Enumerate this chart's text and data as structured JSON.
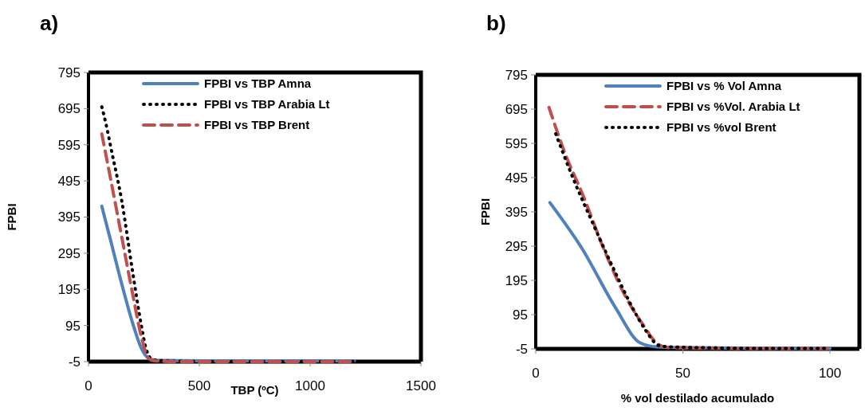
{
  "chart_data": [
    {
      "type": "line",
      "title": "a)",
      "xlabel": "TBP (ºC)",
      "ylabel": "FPBI",
      "xlim": [
        0,
        1500
      ],
      "xticks": [
        0,
        500,
        1000,
        1500
      ],
      "ylim": [
        -5,
        795
      ],
      "yticks": [
        -5,
        95,
        195,
        295,
        395,
        495,
        595,
        695,
        795
      ],
      "grid": false,
      "legend": "top",
      "marker": "none",
      "series": [
        {
          "name": "FPBI vs TBP Amna",
          "color": "#4f81bd",
          "line_style": "solid",
          "x": [
            60,
            100,
            150,
            200,
            240,
            270,
            300,
            400,
            600,
            800,
            1000,
            1200
          ],
          "values": [
            425,
            330,
            210,
            100,
            30,
            5,
            -1,
            -2,
            -3,
            -3,
            -3,
            -3
          ]
        },
        {
          "name": "FPBI vs TBP Arabia Lt",
          "color": "#000000",
          "line_style": "dotted",
          "x": [
            60,
            80,
            100,
            150,
            200,
            240,
            260,
            290,
            400,
            600,
            800,
            1000,
            1200
          ],
          "values": [
            700,
            650,
            590,
            440,
            240,
            90,
            30,
            0,
            -4,
            -5,
            -5,
            -5,
            -5
          ]
        },
        {
          "name": "FPBI vs TBP Brent",
          "color": "#c0504d",
          "line_style": "dashed",
          "x": [
            60,
            100,
            150,
            200,
            240,
            270,
            300,
            400,
            600,
            800,
            1000,
            1200
          ],
          "values": [
            625,
            500,
            340,
            180,
            60,
            5,
            -3,
            -5,
            -5,
            -5,
            -5,
            -5
          ]
        }
      ]
    },
    {
      "type": "line",
      "title": "b)",
      "xlabel": "% vol destilado acumulado",
      "ylabel": "FPBI",
      "xlim": [
        0,
        110
      ],
      "xticks": [
        0,
        50,
        100
      ],
      "ylim": [
        -5,
        795
      ],
      "yticks": [
        -5,
        95,
        195,
        295,
        395,
        495,
        595,
        695,
        795
      ],
      "grid": false,
      "legend": "top right",
      "marker": "none",
      "series": [
        {
          "name": "FPBI vs % Vol Amna",
          "color": "#4f81bd",
          "line_style": "solid",
          "x": [
            4.8,
            15.8,
            27.2,
            35.4,
            41,
            50,
            75,
            100
          ],
          "values": [
            422,
            287,
            114,
            13,
            1,
            -1,
            -3,
            -4
          ]
        },
        {
          "name": "FPBI vs %Vol. Arabia Lt",
          "color": "#c0504d",
          "line_style": "dashed",
          "x": [
            4.5,
            9.8,
            16.2,
            23.5,
            30.9,
            36.4,
            41,
            44.6,
            60,
            80,
            100
          ],
          "values": [
            700,
            569,
            440,
            279,
            142,
            66,
            13,
            -1,
            -3,
            -4,
            -4
          ]
        },
        {
          "name": "FPBI vs %vol Brent",
          "color": "#000000",
          "line_style": "dotted",
          "x": [
            6.8,
            12.5,
            19.9,
            27.2,
            32.7,
            37.3,
            41.8,
            45.5,
            60,
            80,
            100
          ],
          "values": [
            623,
            497,
            352,
            215,
            118,
            50,
            5,
            1,
            -2,
            -4,
            -4
          ]
        }
      ]
    }
  ]
}
